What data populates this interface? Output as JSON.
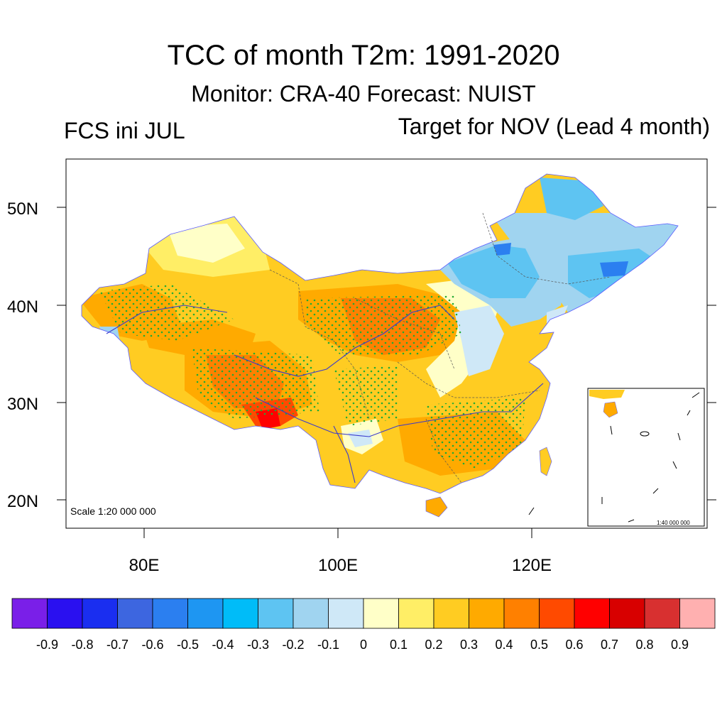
{
  "title": "TCC of month T2m: 1991-2020",
  "subtitle": "Monitor: CRA-40   Forecast: NUIST",
  "left_subtitle": "FCS ini JUL",
  "right_subtitle": "Target for NOV (Lead 4 month)",
  "lat_labels": [
    "50N",
    "40N",
    "30N",
    "20N"
  ],
  "lon_labels": [
    "80E",
    "100E",
    "120E"
  ],
  "scale_main": "Scale 1:20 000 000",
  "scale_inset": "1:40 000 000",
  "colorbar": {
    "colors": [
      "#7a1fe8",
      "#2a10f0",
      "#1a2ef0",
      "#3d66e0",
      "#2b7ff0",
      "#1e96f2",
      "#00bcf8",
      "#5ec4f2",
      "#a0d4f0",
      "#cfe8f7",
      "#ffffc8",
      "#ffee66",
      "#ffcc22",
      "#ffaa00",
      "#ff8000",
      "#ff4a00",
      "#ff0000",
      "#d80000",
      "#d83030",
      "#ffb0b0"
    ],
    "labels": [
      "-0.9",
      "-0.8",
      "-0.7",
      "-0.6",
      "-0.5",
      "-0.4",
      "-0.3",
      "-0.2",
      "-0.1",
      "0",
      "0.1",
      "0.2",
      "0.3",
      "0.4",
      "0.5",
      "0.6",
      "0.7",
      "0.8",
      "0.9"
    ]
  }
}
